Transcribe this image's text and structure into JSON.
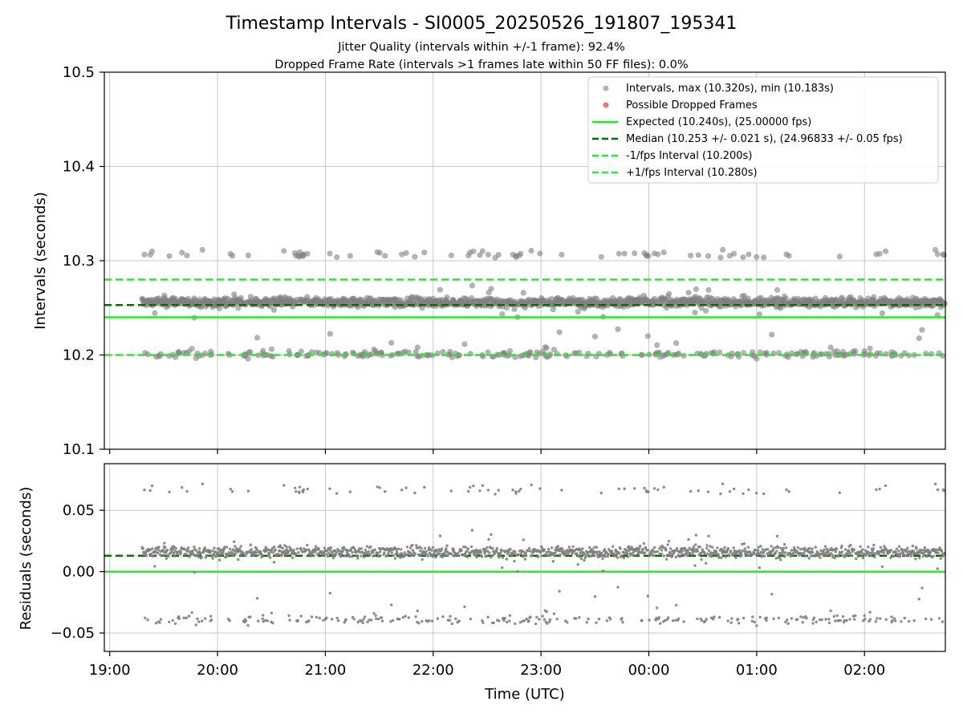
{
  "figure": {
    "title": "Timestamp Intervals - SI0005_20250526_191807_195341",
    "subtitle_jitter": "Jitter Quality (intervals within +/-1 frame): 92.4%",
    "subtitle_dropped": "Dropped Frame Rate (intervals >1 frames late within 50 FF files): 0.0%",
    "xlabel": "Time (UTC)"
  },
  "colors": {
    "points": "#808080",
    "dropped": "#f05a5a",
    "expected": "#22ee22",
    "median": "#007000",
    "fps_interval": "#22ee22",
    "grid": "#b0b0b0"
  },
  "chart_data": [
    {
      "type": "scatter",
      "panel": "intervals",
      "ylabel": "Intervals (seconds)",
      "ylim": [
        10.1,
        10.5
      ],
      "yticks": [
        "10.1",
        "10.2",
        "10.3",
        "10.4",
        "10.5"
      ],
      "xlim_hours": [
        18.95,
        26.75
      ],
      "xticks": [
        "19:00",
        "20:00",
        "21:00",
        "22:00",
        "23:00",
        "00:00",
        "01:00",
        "02:00"
      ],
      "grid": true,
      "legend_position": "top-right",
      "legend": [
        {
          "label": "Intervals, max (10.320s), min (10.183s)",
          "style": "dot"
        },
        {
          "label": "Possible Dropped Frames",
          "style": "dot-red"
        },
        {
          "label": "Expected (10.240s), (25.00000 fps)",
          "style": "solid"
        },
        {
          "label": "Median (10.253 +/- 0.021 s), (24.96833 +/- 0.05 fps)",
          "style": "dash-dark"
        },
        {
          "label": "-1/fps Interval (10.200s)",
          "style": "dash-light"
        },
        {
          "label": "+1/fps Interval (10.280s)",
          "style": "dash-light"
        }
      ],
      "reference_lines": {
        "expected": 10.24,
        "median": 10.253,
        "minus_fps": 10.2,
        "plus_fps": 10.28
      },
      "series_summary": {
        "name": "Intervals",
        "start_time": "19:18",
        "end_time": "02:45",
        "max": 10.32,
        "min": 10.183,
        "main_cluster_center": 10.256,
        "lower_cluster_center": 10.201,
        "upper_outlier_center": 10.307
      }
    },
    {
      "type": "scatter",
      "panel": "residuals",
      "ylabel": "Residuals (seconds)",
      "ylim": [
        -0.065,
        0.088
      ],
      "yticks": [
        "−0.05",
        "0.00",
        "0.05"
      ],
      "ytick_values": [
        -0.05,
        0.0,
        0.05
      ],
      "xlim_hours": [
        18.95,
        26.75
      ],
      "xticks": [
        "19:00",
        "20:00",
        "21:00",
        "22:00",
        "23:00",
        "00:00",
        "01:00",
        "02:00"
      ],
      "grid": true,
      "reference_lines": {
        "zero": 0.0,
        "median_offset": 0.013
      }
    }
  ]
}
